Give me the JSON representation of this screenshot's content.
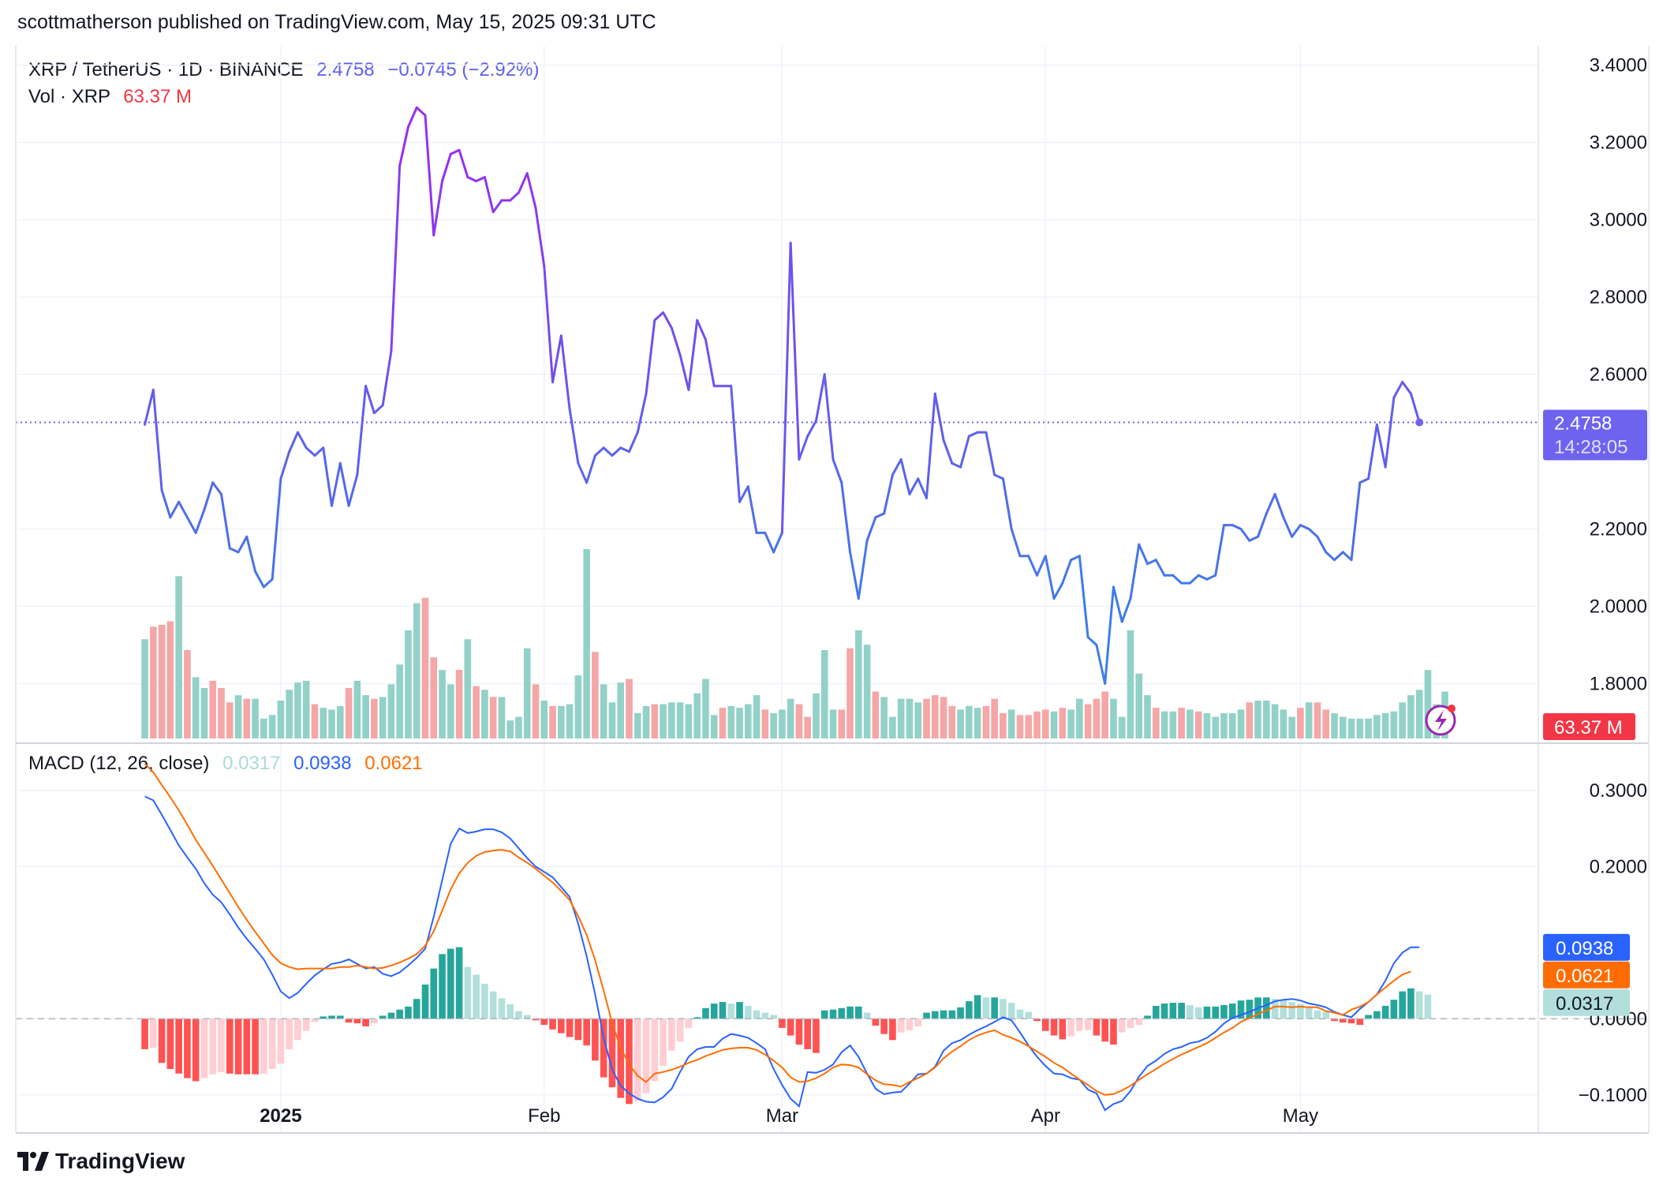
{
  "header": {
    "text": "scottmatherson published on TradingView.com, May 15, 2025 09:31 UTC"
  },
  "legend": {
    "symbol": "XRP / TetherUS · 1D · BINANCE",
    "price": "2.4758",
    "change": "−0.0745 (−2.92%)",
    "vol_label": "Vol · XRP",
    "vol_value": "63.37 M"
  },
  "macd_legend": {
    "label": "MACD (12, 26, close)",
    "hist": "0.0317",
    "macd": "0.0938",
    "signal": "0.0621"
  },
  "price_tag": {
    "price": "2.4758",
    "countdown": "14:28:05"
  },
  "vol_tag": "63.37 M",
  "macd_tags": {
    "macd": "0.0938",
    "signal": "0.0621",
    "hist": "0.0317"
  },
  "footer": {
    "brand": "TradingView",
    "logo_icon": "tradingview-logo-icon"
  },
  "colors": {
    "price_line_blue": "#3d7de8",
    "price_line_purple": "#9b2cf0",
    "vol_up": "#92d1c8",
    "vol_down": "#f5a6a6",
    "macd_line": "#2962ff",
    "signal_line": "#ff6d00",
    "hist_up_strong": "#26a69a",
    "hist_up_weak": "#b2dfdb",
    "hist_down_strong": "#ff5252",
    "hist_down_weak": "#ffcdd2",
    "price_tag_bg": "#6d63ef",
    "vol_tag_bg": "#f23645"
  },
  "chart_data": [
    {
      "type": "line",
      "symbol": "XRP / TetherUS",
      "interval": "1D",
      "exchange": "BINANCE",
      "y_ticks": [
        "3.4000",
        "3.2000",
        "3.0000",
        "2.8000",
        "2.6000",
        "2.2000",
        "2.0000",
        "1.8000"
      ],
      "ylim": [
        1.65,
        3.45
      ],
      "x_ticks": [
        "2025",
        "Feb",
        "Mar",
        "Apr",
        "May"
      ],
      "x_range": [
        "2024-12-01",
        "2025-05-29"
      ],
      "last_date": "2025-05-15",
      "values": [
        2.47,
        2.56,
        2.3,
        2.23,
        2.27,
        2.23,
        2.19,
        2.25,
        2.32,
        2.29,
        2.15,
        2.14,
        2.18,
        2.09,
        2.05,
        2.07,
        2.33,
        2.4,
        2.45,
        2.41,
        2.39,
        2.41,
        2.26,
        2.37,
        2.26,
        2.34,
        2.57,
        2.5,
        2.52,
        2.66,
        3.14,
        3.24,
        3.29,
        3.27,
        2.96,
        3.1,
        3.17,
        3.18,
        3.11,
        3.1,
        3.11,
        3.02,
        3.05,
        3.05,
        3.07,
        3.12,
        3.03,
        2.88,
        2.58,
        2.7,
        2.51,
        2.37,
        2.32,
        2.39,
        2.41,
        2.39,
        2.41,
        2.4,
        2.45,
        2.55,
        2.74,
        2.76,
        2.72,
        2.65,
        2.56,
        2.74,
        2.69,
        2.57,
        2.57,
        2.57,
        2.27,
        2.31,
        2.19,
        2.19,
        2.14,
        2.19,
        2.94,
        2.38,
        2.44,
        2.48,
        2.6,
        2.38,
        2.32,
        2.14,
        2.02,
        2.17,
        2.23,
        2.24,
        2.34,
        2.38,
        2.29,
        2.33,
        2.28,
        2.55,
        2.43,
        2.37,
        2.36,
        2.44,
        2.45,
        2.45,
        2.34,
        2.33,
        2.2,
        2.13,
        2.13,
        2.08,
        2.13,
        2.02,
        2.06,
        2.12,
        2.13,
        1.92,
        1.9,
        1.8,
        2.05,
        1.96,
        2.02,
        2.16,
        2.11,
        2.12,
        2.08,
        2.08,
        2.06,
        2.06,
        2.08,
        2.07,
        2.08,
        2.21,
        2.21,
        2.2,
        2.17,
        2.18,
        2.24,
        2.29,
        2.23,
        2.18,
        2.21,
        2.2,
        2.18,
        2.14,
        2.12,
        2.14,
        2.12,
        2.32,
        2.33,
        2.47,
        2.36,
        2.54,
        2.58,
        2.55,
        2.4758
      ]
    },
    {
      "type": "bar",
      "name": "Vol · XRP",
      "last_value": "63.37 M",
      "values": [
        55,
        62,
        63,
        65,
        90,
        49,
        34,
        28,
        32,
        28,
        20,
        24,
        22,
        22,
        11,
        13,
        21,
        27,
        31,
        32,
        19,
        17,
        16,
        18,
        28,
        32,
        24,
        22,
        23,
        30,
        41,
        60,
        75,
        78,
        45,
        38,
        30,
        38,
        55,
        29,
        27,
        23,
        23,
        10,
        12,
        50,
        30,
        21,
        18,
        18,
        19,
        35,
        105,
        48,
        30,
        20,
        31,
        33,
        14,
        18,
        19,
        19,
        20,
        20,
        19,
        25,
        33,
        13,
        17,
        18,
        17,
        19,
        24,
        16,
        14,
        16,
        22,
        19,
        12,
        25,
        49,
        16,
        16,
        50,
        60,
        52,
        26,
        23,
        12,
        22,
        22,
        20,
        22,
        24,
        23,
        18,
        16,
        18,
        17,
        18,
        22,
        14,
        16,
        13,
        13,
        15,
        16,
        15,
        17,
        16,
        22,
        19,
        22,
        26,
        22,
        12,
        60,
        36,
        24,
        17,
        15,
        15,
        17,
        16,
        15,
        14,
        12,
        14,
        14,
        16,
        20,
        21,
        21,
        19,
        16,
        12,
        17,
        20,
        20,
        16,
        14,
        12,
        11,
        11,
        11,
        13,
        14,
        15,
        20,
        24,
        27,
        38,
        19,
        26
      ],
      "directions": [
        "up",
        "down",
        "down",
        "down",
        "up",
        "down",
        "up",
        "up",
        "down",
        "down",
        "down",
        "up",
        "down",
        "up",
        "up",
        "up",
        "up",
        "up",
        "up",
        "up",
        "down",
        "up",
        "up",
        "up",
        "down",
        "up",
        "up",
        "down",
        "up",
        "up",
        "up",
        "up",
        "up",
        "down",
        "down",
        "up",
        "up",
        "down",
        "up",
        "down",
        "up",
        "down",
        "up",
        "up",
        "up",
        "up",
        "down",
        "up",
        "down",
        "up",
        "up",
        "up",
        "up",
        "down",
        "up",
        "up",
        "up",
        "down",
        "up",
        "up",
        "down",
        "up",
        "up",
        "up",
        "up",
        "up",
        "up",
        "up",
        "down",
        "up",
        "up",
        "up",
        "up",
        "down",
        "up",
        "up",
        "up",
        "down",
        "down",
        "up",
        "up",
        "up",
        "down",
        "down",
        "up",
        "up",
        "down",
        "up",
        "up",
        "up",
        "up",
        "up",
        "down",
        "down",
        "down",
        "down",
        "up",
        "up",
        "up",
        "down",
        "down",
        "down",
        "up",
        "down",
        "down",
        "down",
        "down",
        "up",
        "down",
        "up",
        "up",
        "down",
        "down",
        "down",
        "up",
        "up",
        "up",
        "up",
        "up",
        "down",
        "up",
        "up",
        "down",
        "up",
        "down",
        "up",
        "up",
        "up",
        "up",
        "up",
        "down",
        "up",
        "up",
        "up",
        "up",
        "up",
        "down",
        "up",
        "down",
        "down",
        "up",
        "up",
        "up",
        "up",
        "up",
        "up",
        "up",
        "up",
        "up",
        "up",
        "up",
        "up",
        "up",
        "up"
      ],
      "y_ticks": []
    },
    {
      "type": "line",
      "name": "MACD (12, 26, close)",
      "y_ticks": [
        "0.3000",
        "0.2000",
        "0.0000",
        "−0.1000"
      ],
      "ylim": [
        -0.15,
        0.36
      ],
      "series": [
        {
          "name": "MACD",
          "values": [
            0.292,
            0.287,
            0.268,
            0.248,
            0.228,
            0.212,
            0.197,
            0.178,
            0.163,
            0.153,
            0.137,
            0.12,
            0.105,
            0.092,
            0.078,
            0.058,
            0.036,
            0.027,
            0.034,
            0.046,
            0.057,
            0.065,
            0.072,
            0.074,
            0.078,
            0.072,
            0.066,
            0.068,
            0.059,
            0.056,
            0.061,
            0.07,
            0.08,
            0.092,
            0.134,
            0.182,
            0.23,
            0.25,
            0.244,
            0.246,
            0.249,
            0.249,
            0.245,
            0.237,
            0.224,
            0.211,
            0.2,
            0.193,
            0.186,
            0.173,
            0.16,
            0.125,
            0.082,
            0.032,
            -0.025,
            -0.067,
            -0.088,
            -0.098,
            -0.105,
            -0.109,
            -0.11,
            -0.103,
            -0.092,
            -0.07,
            -0.05,
            -0.04,
            -0.037,
            -0.037,
            -0.026,
            -0.02,
            -0.022,
            -0.025,
            -0.032,
            -0.04,
            -0.066,
            -0.087,
            -0.105,
            -0.115,
            -0.07,
            -0.071,
            -0.067,
            -0.06,
            -0.044,
            -0.035,
            -0.05,
            -0.072,
            -0.092,
            -0.099,
            -0.097,
            -0.096,
            -0.085,
            -0.073,
            -0.072,
            -0.063,
            -0.042,
            -0.032,
            -0.028,
            -0.021,
            -0.015,
            -0.01,
            -0.004,
            0.002,
            -0.002,
            -0.018,
            -0.035,
            -0.05,
            -0.062,
            -0.072,
            -0.073,
            -0.078,
            -0.08,
            -0.093,
            -0.098,
            -0.12,
            -0.112,
            -0.108,
            -0.095,
            -0.076,
            -0.062,
            -0.055,
            -0.046,
            -0.04,
            -0.037,
            -0.032,
            -0.03,
            -0.025,
            -0.017,
            -0.006,
            0.001,
            0.005,
            0.009,
            0.014,
            0.018,
            0.023,
            0.025,
            0.026,
            0.024,
            0.02,
            0.018,
            0.015,
            0.009,
            0.005,
            0.002,
            0.013,
            0.022,
            0.032,
            0.05,
            0.073,
            0.087,
            0.094,
            0.0938
          ]
        },
        {
          "name": "Signal",
          "values": [
            0.335,
            0.324,
            0.307,
            0.291,
            0.274,
            0.255,
            0.235,
            0.218,
            0.201,
            0.183,
            0.165,
            0.147,
            0.13,
            0.114,
            0.099,
            0.084,
            0.073,
            0.068,
            0.065,
            0.066,
            0.066,
            0.066,
            0.066,
            0.068,
            0.068,
            0.07,
            0.068,
            0.066,
            0.067,
            0.07,
            0.074,
            0.079,
            0.085,
            0.096,
            0.115,
            0.142,
            0.17,
            0.191,
            0.205,
            0.214,
            0.219,
            0.221,
            0.222,
            0.22,
            0.212,
            0.205,
            0.197,
            0.188,
            0.179,
            0.168,
            0.156,
            0.135,
            0.11,
            0.077,
            0.037,
            -0.006,
            -0.038,
            -0.06,
            -0.075,
            -0.083,
            -0.072,
            -0.07,
            -0.067,
            -0.063,
            -0.058,
            -0.054,
            -0.049,
            -0.045,
            -0.041,
            -0.039,
            -0.038,
            -0.038,
            -0.041,
            -0.047,
            -0.055,
            -0.064,
            -0.077,
            -0.083,
            -0.082,
            -0.078,
            -0.072,
            -0.064,
            -0.06,
            -0.061,
            -0.064,
            -0.073,
            -0.081,
            -0.086,
            -0.087,
            -0.089,
            -0.083,
            -0.078,
            -0.072,
            -0.064,
            -0.052,
            -0.043,
            -0.036,
            -0.028,
            -0.022,
            -0.018,
            -0.015,
            -0.021,
            -0.025,
            -0.03,
            -0.036,
            -0.043,
            -0.05,
            -0.058,
            -0.064,
            -0.072,
            -0.08,
            -0.087,
            -0.095,
            -0.1,
            -0.099,
            -0.094,
            -0.088,
            -0.08,
            -0.073,
            -0.066,
            -0.059,
            -0.053,
            -0.047,
            -0.042,
            -0.037,
            -0.032,
            -0.025,
            -0.018,
            -0.012,
            -0.004,
            0.001,
            0.006,
            0.011,
            0.016,
            0.016,
            0.015,
            0.016,
            0.015,
            0.015,
            0.01,
            0.008,
            0.005,
            0.012,
            0.016,
            0.022,
            0.032,
            0.041,
            0.05,
            0.058,
            0.0621
          ]
        },
        {
          "name": "Histogram",
          "values": [
            -0.04,
            -0.038,
            -0.058,
            -0.066,
            -0.072,
            -0.078,
            -0.082,
            -0.078,
            -0.073,
            -0.07,
            -0.072,
            -0.073,
            -0.073,
            -0.073,
            -0.072,
            -0.066,
            -0.059,
            -0.04,
            -0.028,
            -0.016,
            -0.004,
            0.003,
            0.004,
            0.004,
            -0.005,
            -0.006,
            -0.01,
            -0.006,
            0.004,
            0.008,
            0.012,
            0.016,
            0.026,
            0.045,
            0.066,
            0.085,
            0.092,
            0.094,
            0.068,
            0.058,
            0.046,
            0.036,
            0.027,
            0.019,
            0.01,
            0.005,
            -0.002,
            -0.008,
            -0.014,
            -0.019,
            -0.024,
            -0.028,
            -0.035,
            -0.055,
            -0.077,
            -0.09,
            -0.104,
            -0.112,
            -0.108,
            -0.098,
            -0.082,
            -0.062,
            -0.042,
            -0.03,
            -0.012,
            0.002,
            0.014,
            0.02,
            0.022,
            0.02,
            0.022,
            0.017,
            0.011,
            0.008,
            0.005,
            -0.012,
            -0.022,
            -0.034,
            -0.04,
            -0.045,
            0.011,
            0.012,
            0.014,
            0.016,
            0.016,
            0.008,
            -0.009,
            -0.02,
            -0.028,
            -0.018,
            -0.015,
            -0.01,
            0.008,
            0.01,
            0.011,
            0.011,
            0.015,
            0.023,
            0.031,
            0.028,
            0.028,
            0.026,
            0.021,
            0.012,
            0.009,
            -0.003,
            -0.016,
            -0.022,
            -0.027,
            -0.023,
            -0.016,
            -0.015,
            -0.022,
            -0.03,
            -0.034,
            -0.018,
            -0.012,
            -0.008,
            0.004,
            0.017,
            0.02,
            0.021,
            0.021,
            0.018,
            0.015,
            0.016,
            0.016,
            0.018,
            0.02,
            0.024,
            0.025,
            0.028,
            0.028,
            0.026,
            0.024,
            0.022,
            0.019,
            0.014,
            0.011,
            0.009,
            -0.003,
            -0.005,
            -0.006,
            -0.008,
            0.005,
            0.01,
            0.017,
            0.025,
            0.036,
            0.04,
            0.036,
            0.0317
          ]
        }
      ]
    }
  ]
}
